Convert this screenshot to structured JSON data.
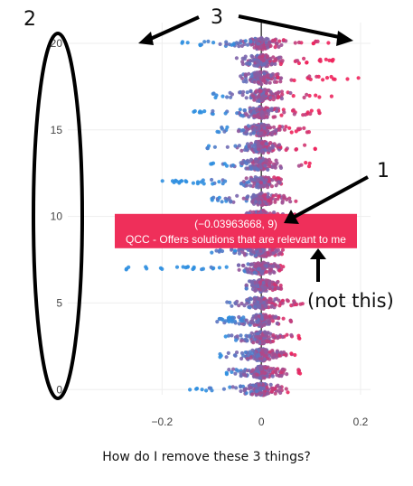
{
  "chart_data": {
    "type": "scatter",
    "subtype": "beeswarm",
    "title": "",
    "xlabel": "",
    "ylabel": "",
    "xlim": [
      -0.39,
      0.22
    ],
    "ylim": [
      -0.3,
      21.2
    ],
    "xticks": [
      -0.2,
      0,
      0.2
    ],
    "xtick_labels": [
      "−0.2",
      "0",
      "0.2"
    ],
    "yticks": [
      0,
      5,
      10,
      15,
      20
    ],
    "ytick_labels": [
      "0",
      "5",
      "10",
      "15",
      "20"
    ],
    "grid": true,
    "legend": "none",
    "colors": {
      "low": "#2f8fe0",
      "high": "#f0245c",
      "mid": "#8e5bb8",
      "zeroline": "#444444",
      "grid": "#eeeeee"
    },
    "rows": [
      {
        "y": 0,
        "min": -0.15,
        "max": 0.06
      },
      {
        "y": 1,
        "min": -0.07,
        "max": 0.08
      },
      {
        "y": 2,
        "min": -0.09,
        "max": 0.07
      },
      {
        "y": 3,
        "min": -0.08,
        "max": 0.08
      },
      {
        "y": 4,
        "min": -0.09,
        "max": 0.06
      },
      {
        "y": 5,
        "min": -0.07,
        "max": 0.09
      },
      {
        "y": 6,
        "min": -0.03,
        "max": 0.04
      },
      {
        "y": 7,
        "min": -0.28,
        "max": 0.06
      },
      {
        "y": 8,
        "min": -0.1,
        "max": 0.05
      },
      {
        "y": 9,
        "min": -0.16,
        "max": 0.09
      },
      {
        "y": 10,
        "min": -0.05,
        "max": 0.1
      },
      {
        "y": 11,
        "min": -0.1,
        "max": 0.07
      },
      {
        "y": 12,
        "min": -0.22,
        "max": 0.06
      },
      {
        "y": 13,
        "min": -0.11,
        "max": 0.1
      },
      {
        "y": 14,
        "min": -0.11,
        "max": 0.12
      },
      {
        "y": 15,
        "min": -0.09,
        "max": 0.1
      },
      {
        "y": 16,
        "min": -0.14,
        "max": 0.12
      },
      {
        "y": 17,
        "min": -0.1,
        "max": 0.15
      },
      {
        "y": 18,
        "min": -0.05,
        "max": 0.2
      },
      {
        "y": 19,
        "min": -0.06,
        "max": 0.15
      },
      {
        "y": 20,
        "min": -0.16,
        "max": 0.14
      }
    ],
    "hover": {
      "x": -0.03963668,
      "y": 9,
      "line1": "(−0.03963668, 9)",
      "line2": "QCC - Offers solutions that are relevant to me",
      "bg": "#ef2f5a"
    }
  },
  "annotations": {
    "label_1": "1",
    "label_2": "2",
    "label_3": "3",
    "not_this": "(not this)"
  },
  "caption": "How do I remove these 3 things?"
}
